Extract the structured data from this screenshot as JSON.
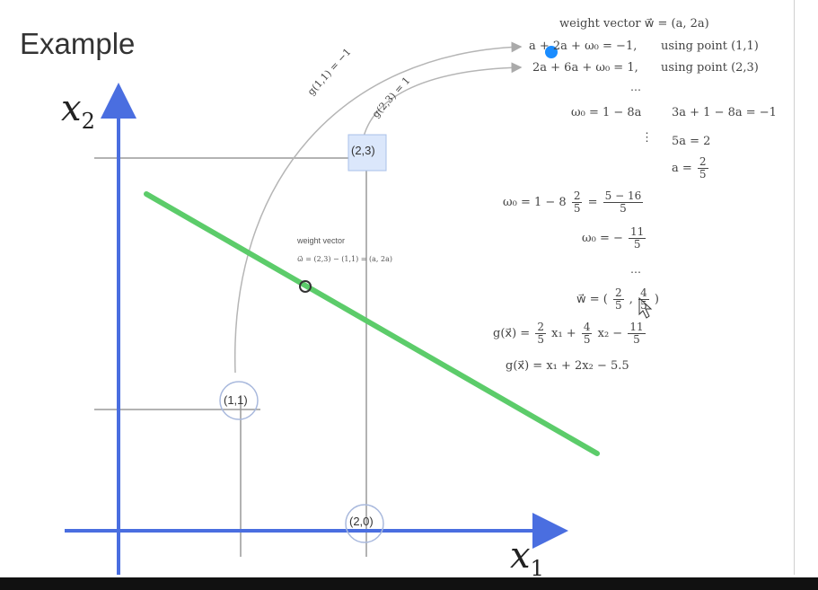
{
  "title": "Example",
  "axes": {
    "x_label": "x",
    "x_sub": "1",
    "y_label": "x",
    "y_sub": "2"
  },
  "points": {
    "p11": "(1,1)",
    "p23": "(2,3)",
    "p20": "(2,0)"
  },
  "curve_labels": {
    "g11": "g(1,1) = −1",
    "g23": "g(2,3) = 1"
  },
  "note": {
    "heading": "weight vector",
    "formula": "ω⃗ = (2,3) − (1,1) = (a, 2a)"
  },
  "equations": {
    "line1": "weight vector   w⃗ = (a, 2a)",
    "line2a": "a + 2a + ω₀ = −1,",
    "line2b": "using point (1,1)",
    "line3a": "2a + 6a + ω₀ = 1,",
    "line3b": "using point (2,3)",
    "dots": "⋯",
    "w0": "ω₀ = 1 − 8a",
    "sub1": "3a + 1 − 8a = −1",
    "vdots": "⋮",
    "sub2": "5a = 2",
    "a_eq": "a =",
    "a_num": "2",
    "a_den": "5",
    "w0_calc_pre": "ω₀ = 1 − 8",
    "w0_calc_num1": "2",
    "w0_calc_den1": "5",
    "w0_calc_eq": "=",
    "w0_calc_num2": "5 − 16",
    "w0_calc_den2": "5",
    "w0_res_pre": "ω₀ = −",
    "w0_res_num": "11",
    "w0_res_den": "5",
    "dots2": "⋯",
    "wvec_pre": "w⃗ = (",
    "wvec_n1": "2",
    "wvec_d1": "5",
    "wvec_sep": ",",
    "wvec_n2": "4",
    "wvec_d2": "5",
    "wvec_post": ")",
    "g_pre": "g(x⃗) =",
    "g_n1": "2",
    "g_d1": "5",
    "g_mid1": "x₁ +",
    "g_n2": "4",
    "g_d2": "5",
    "g_mid2": "x₂ −",
    "g_n3": "11",
    "g_d3": "5",
    "g_final": "g(x⃗) = x₁ + 2x₂ − 5.5"
  },
  "colors": {
    "axis": "#4a6ee0",
    "line": "#5ccc6a",
    "guide": "#9a9a9a",
    "cursor": "#1a8cff"
  }
}
